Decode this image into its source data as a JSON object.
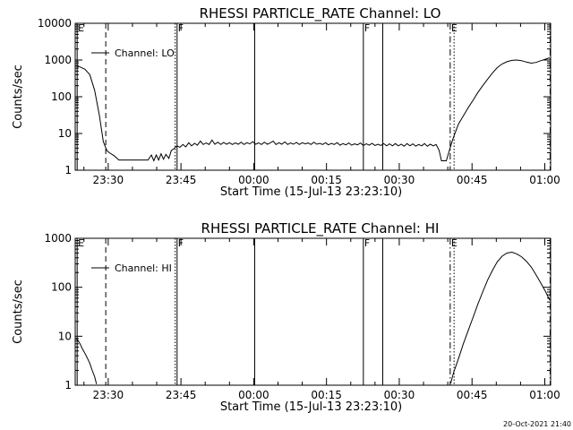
{
  "footer": {
    "timestamp": "20-Oct-2021 21:40"
  },
  "chart_data": [
    {
      "type": "line",
      "title": "RHESSI PARTICLE_RATE Channel: LO",
      "xlabel": "Start Time (15-Jul-13 23:23:10)",
      "ylabel": "Counts/sec",
      "yscale": "log",
      "ylim": [
        1,
        10000
      ],
      "xlim_minutes": [
        0,
        98
      ],
      "x_ticks": [
        {
          "t": 6.8,
          "label": "23:30"
        },
        {
          "t": 21.8,
          "label": "23:45"
        },
        {
          "t": 36.8,
          "label": "00:00"
        },
        {
          "t": 51.8,
          "label": "00:15"
        },
        {
          "t": 66.8,
          "label": "00:30"
        },
        {
          "t": 81.8,
          "label": "00:45"
        },
        {
          "t": 96.8,
          "label": "01:00"
        }
      ],
      "y_ticks": [
        {
          "v": 1,
          "label": "1"
        },
        {
          "v": 10,
          "label": "10"
        },
        {
          "v": 100,
          "label": "100"
        },
        {
          "v": 1000,
          "label": "1000"
        },
        {
          "v": 10000,
          "label": "10000"
        }
      ],
      "legend": {
        "label": "Channel: LO",
        "position": "top-left"
      },
      "markers": [
        {
          "t": 0.4,
          "style": "solid",
          "letter": "E"
        },
        {
          "t": 6.3,
          "style": "dashed",
          "letter": ""
        },
        {
          "t": 20.6,
          "style": "dotted",
          "letter": ""
        },
        {
          "t": 21.0,
          "style": "solid",
          "letter": "F"
        },
        {
          "t": 37.0,
          "style": "solid",
          "letter": ""
        },
        {
          "t": 59.4,
          "style": "solid",
          "letter": "F"
        },
        {
          "t": 63.4,
          "style": "solid",
          "letter": ""
        },
        {
          "t": 77.3,
          "style": "dashdot",
          "letter": "E"
        },
        {
          "t": 78.1,
          "style": "dotted",
          "letter": ""
        },
        {
          "t": 97.9,
          "style": "dashdot",
          "letter": ""
        }
      ],
      "series": [
        {
          "values": [
            [
              0,
              700
            ],
            [
              1,
              650
            ],
            [
              2,
              560
            ],
            [
              3,
              400
            ],
            [
              4,
              150
            ],
            [
              5,
              30
            ],
            [
              5.8,
              6
            ],
            [
              6.5,
              3.5
            ],
            [
              7,
              3
            ],
            [
              8,
              2.5
            ],
            [
              9,
              1.9
            ],
            [
              10,
              1.9
            ],
            [
              11,
              1.9
            ],
            [
              12,
              1.9
            ],
            [
              13,
              1.9
            ],
            [
              14,
              1.9
            ],
            [
              15,
              1.9
            ],
            [
              15.7,
              2.6
            ],
            [
              16.2,
              1.8
            ],
            [
              16.7,
              2.6
            ],
            [
              17.2,
              1.9
            ],
            [
              17.7,
              2.8
            ],
            [
              18.2,
              2
            ],
            [
              18.7,
              2.7
            ],
            [
              19.3,
              2.1
            ],
            [
              19.8,
              3.4
            ],
            [
              20.5,
              4
            ],
            [
              21,
              4.6
            ],
            [
              21.6,
              4.2
            ],
            [
              22.2,
              5
            ],
            [
              22.8,
              4.3
            ],
            [
              23.4,
              5.6
            ],
            [
              24,
              4.6
            ],
            [
              24.6,
              5.4
            ],
            [
              25.2,
              4.8
            ],
            [
              25.8,
              6.2
            ],
            [
              26.4,
              5
            ],
            [
              27,
              5.5
            ],
            [
              27.6,
              5
            ],
            [
              28.2,
              6.6
            ],
            [
              28.8,
              5.1
            ],
            [
              29.4,
              5.8
            ],
            [
              30,
              5
            ],
            [
              30.6,
              5.7
            ],
            [
              31.2,
              5.1
            ],
            [
              31.8,
              5.6
            ],
            [
              32.4,
              5
            ],
            [
              33,
              5.5
            ],
            [
              33.6,
              5.1
            ],
            [
              34.2,
              5.8
            ],
            [
              34.8,
              5
            ],
            [
              35.4,
              5.6
            ],
            [
              36,
              5.2
            ],
            [
              36.6,
              6
            ],
            [
              37.2,
              5.1
            ],
            [
              37.8,
              5.5
            ],
            [
              38.4,
              5
            ],
            [
              39,
              5.8
            ],
            [
              39.6,
              5.1
            ],
            [
              40.2,
              5.5
            ],
            [
              40.8,
              6.2
            ],
            [
              41.4,
              5
            ],
            [
              42,
              5.6
            ],
            [
              42.6,
              5.1
            ],
            [
              43.2,
              5.9
            ],
            [
              43.8,
              5
            ],
            [
              44.4,
              5.5
            ],
            [
              45,
              5.1
            ],
            [
              45.6,
              5.7
            ],
            [
              46.2,
              5
            ],
            [
              46.8,
              5.6
            ],
            [
              47.4,
              5.2
            ],
            [
              48,
              5.5
            ],
            [
              48.6,
              5
            ],
            [
              49.2,
              5.8
            ],
            [
              49.8,
              5.1
            ],
            [
              50.4,
              5.4
            ],
            [
              51,
              5
            ],
            [
              51.6,
              5.6
            ],
            [
              52.2,
              4.9
            ],
            [
              52.8,
              5.4
            ],
            [
              53.4,
              5
            ],
            [
              54,
              5.6
            ],
            [
              54.6,
              4.8
            ],
            [
              55.2,
              5.3
            ],
            [
              55.8,
              4.9
            ],
            [
              56.4,
              5.5
            ],
            [
              57,
              4.8
            ],
            [
              57.6,
              5.2
            ],
            [
              58.2,
              4.9
            ],
            [
              58.8,
              5.5
            ],
            [
              59.4,
              4.7
            ],
            [
              60,
              5.2
            ],
            [
              60.6,
              4.8
            ],
            [
              61.2,
              5.4
            ],
            [
              61.8,
              4.7
            ],
            [
              62.4,
              5.1
            ],
            [
              63,
              4.7
            ],
            [
              63.6,
              5.3
            ],
            [
              64.2,
              4.6
            ],
            [
              64.8,
              5.2
            ],
            [
              65.4,
              4.6
            ],
            [
              66,
              5.3
            ],
            [
              66.6,
              4.6
            ],
            [
              67.2,
              5.1
            ],
            [
              67.8,
              4.5
            ],
            [
              68.4,
              5.3
            ],
            [
              69,
              4.6
            ],
            [
              69.6,
              5.2
            ],
            [
              70.2,
              4.5
            ],
            [
              70.8,
              5
            ],
            [
              71.4,
              4.6
            ],
            [
              72,
              5.3
            ],
            [
              72.6,
              4.5
            ],
            [
              73.2,
              5.1
            ],
            [
              73.8,
              4.6
            ],
            [
              74.4,
              5
            ],
            [
              75,
              3.5
            ],
            [
              75.5,
              1.8
            ],
            [
              76.5,
              1.8
            ],
            [
              77,
              3
            ],
            [
              77.5,
              5
            ],
            [
              78,
              8
            ],
            [
              78.5,
              12
            ],
            [
              79,
              18
            ],
            [
              80,
              30
            ],
            [
              81,
              50
            ],
            [
              82,
              80
            ],
            [
              83,
              130
            ],
            [
              84,
              200
            ],
            [
              85,
              300
            ],
            [
              86,
              440
            ],
            [
              87,
              620
            ],
            [
              88,
              780
            ],
            [
              89,
              900
            ],
            [
              90,
              980
            ],
            [
              91,
              1000
            ],
            [
              92,
              960
            ],
            [
              93,
              880
            ],
            [
              94,
              820
            ],
            [
              95,
              860
            ],
            [
              96,
              960
            ],
            [
              97,
              1060
            ],
            [
              97.8,
              1150
            ]
          ]
        }
      ]
    },
    {
      "type": "line",
      "title": "RHESSI PARTICLE_RATE Channel: HI",
      "xlabel": "Start Time (15-Jul-13 23:23:10)",
      "ylabel": "Counts/sec",
      "yscale": "log",
      "ylim": [
        1,
        1000
      ],
      "xlim_minutes": [
        0,
        98
      ],
      "x_ticks": [
        {
          "t": 6.8,
          "label": "23:30"
        },
        {
          "t": 21.8,
          "label": "23:45"
        },
        {
          "t": 36.8,
          "label": "00:00"
        },
        {
          "t": 51.8,
          "label": "00:15"
        },
        {
          "t": 66.8,
          "label": "00:30"
        },
        {
          "t": 81.8,
          "label": "00:45"
        },
        {
          "t": 96.8,
          "label": "01:00"
        }
      ],
      "y_ticks": [
        {
          "v": 1,
          "label": "1"
        },
        {
          "v": 10,
          "label": "10"
        },
        {
          "v": 100,
          "label": "100"
        },
        {
          "v": 1000,
          "label": "1000"
        }
      ],
      "legend": {
        "label": "Channel: HI",
        "position": "top-left"
      },
      "markers": [
        {
          "t": 0.4,
          "style": "solid",
          "letter": "E"
        },
        {
          "t": 6.3,
          "style": "dashed",
          "letter": ""
        },
        {
          "t": 20.6,
          "style": "dotted",
          "letter": ""
        },
        {
          "t": 21.0,
          "style": "solid",
          "letter": "F"
        },
        {
          "t": 37.0,
          "style": "solid",
          "letter": ""
        },
        {
          "t": 59.4,
          "style": "solid",
          "letter": "F"
        },
        {
          "t": 63.4,
          "style": "solid",
          "letter": ""
        },
        {
          "t": 77.3,
          "style": "dashdot",
          "letter": "E"
        },
        {
          "t": 78.1,
          "style": "dotted",
          "letter": ""
        },
        {
          "t": 97.9,
          "style": "dashdot",
          "letter": ""
        }
      ],
      "series": [
        {
          "values": [
            [
              0,
              9
            ],
            [
              0.5,
              8.5
            ],
            [
              1,
              7
            ],
            [
              1.5,
              5.5
            ],
            [
              2,
              4.5
            ],
            [
              2.5,
              3.6
            ],
            [
              3,
              2.8
            ],
            [
              3.5,
              2
            ],
            [
              4,
              1.5
            ],
            [
              4.4,
              1.05
            ],
            [
              77.4,
              1.1
            ],
            [
              78,
              1.8
            ],
            [
              79,
              3.5
            ],
            [
              80,
              7
            ],
            [
              81,
              13
            ],
            [
              82,
              24
            ],
            [
              83,
              45
            ],
            [
              84,
              80
            ],
            [
              85,
              140
            ],
            [
              86,
              220
            ],
            [
              87,
              330
            ],
            [
              88,
              430
            ],
            [
              89,
              500
            ],
            [
              90,
              520
            ],
            [
              91,
              480
            ],
            [
              92,
              420
            ],
            [
              93,
              340
            ],
            [
              94,
              260
            ],
            [
              95,
              180
            ],
            [
              96,
              120
            ],
            [
              97,
              80
            ],
            [
              97.8,
              55
            ]
          ]
        }
      ]
    }
  ]
}
